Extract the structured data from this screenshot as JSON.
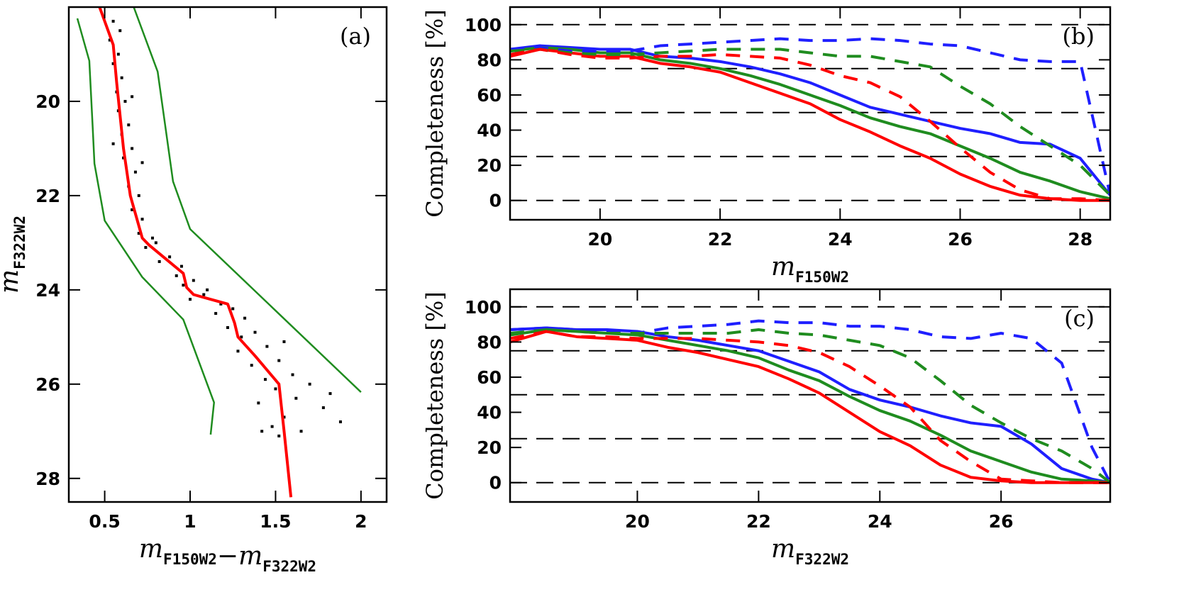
{
  "chart_data": [
    {
      "type": "scatter",
      "annotation": "(a)",
      "xlabel": [
        {
          "text": "m",
          "sub": "F150W2"
        },
        {
          "text": "−m",
          "sub": "F322W2"
        }
      ],
      "ylabel": [
        {
          "text": "m",
          "sub": "F322W2"
        }
      ],
      "xlim": [
        0.29,
        2.15
      ],
      "ylim": [
        28.5,
        18
      ],
      "xticks": [
        {
          "value": 0.5,
          "label": "0.5"
        },
        1,
        {
          "value": 1.5,
          "label": "1.5"
        },
        2
      ],
      "yticks": [
        20,
        22,
        24,
        26,
        28
      ],
      "series": [
        {
          "mode": "markers",
          "color": "#000000",
          "x": [
            0.55,
            0.59,
            0.53,
            0.58,
            0.55,
            0.6,
            0.57,
            0.62,
            0.58,
            0.64,
            0.6,
            0.66,
            0.61,
            0.68,
            0.64,
            0.7,
            0.66,
            0.72,
            0.7,
            0.8,
            0.74,
            0.88,
            0.82,
            0.95,
            0.92,
            1.02,
            0.96,
            1.08,
            1.0,
            1.18,
            1.25,
            1.15,
            1.32,
            1.22,
            1.38,
            1.3,
            1.45,
            1.28,
            1.52,
            1.36,
            1.6,
            1.44,
            1.7,
            1.5,
            1.62,
            1.4,
            1.78,
            1.55,
            1.88,
            1.48,
            1.65,
            1.52,
            0.72,
            0.55,
            1.1,
            1.55,
            0.66,
            0.78,
            1.82,
            1.42
          ],
          "y": [
            18.3,
            18.5,
            18.7,
            19.0,
            19.2,
            19.5,
            19.8,
            20.0,
            20.2,
            20.5,
            20.7,
            21.0,
            21.2,
            21.5,
            21.8,
            22.0,
            22.3,
            22.5,
            22.8,
            23.0,
            23.1,
            23.3,
            23.4,
            23.5,
            23.7,
            23.8,
            23.9,
            24.1,
            24.2,
            24.3,
            24.4,
            24.5,
            24.6,
            24.8,
            24.9,
            25.0,
            25.2,
            25.3,
            25.5,
            25.6,
            25.8,
            25.9,
            26.0,
            26.1,
            26.3,
            26.4,
            26.5,
            26.7,
            26.8,
            26.9,
            27.0,
            27.1,
            21.3,
            20.9,
            24.0,
            25.1,
            19.9,
            22.9,
            26.2,
            27.0
          ]
        },
        {
          "mode": "lines",
          "color": "#1f8c1f",
          "x": [
            0.34,
            0.41,
            0.43,
            0.44,
            0.5,
            0.72,
            0.96,
            1.14,
            1.12
          ],
          "y": [
            18.24,
            19.14,
            20.57,
            21.32,
            22.53,
            23.73,
            24.63,
            26.39,
            27.07
          ]
        },
        {
          "mode": "lines",
          "color": "#1f8c1f",
          "x": [
            0.67,
            0.81,
            0.9,
            1.0,
            2.0
          ],
          "y": [
            18.0,
            19.37,
            21.7,
            22.71,
            26.17
          ]
        },
        {
          "mode": "lines",
          "color": "#ff0000",
          "x": [
            0.47,
            0.55,
            0.57,
            0.61,
            0.65,
            0.72,
            0.76,
            0.86,
            0.96,
            0.98,
            1.02,
            1.12,
            1.22,
            1.26,
            1.28,
            1.38,
            1.45,
            1.52,
            1.55,
            1.59
          ],
          "y": [
            18.0,
            18.8,
            19.6,
            21.0,
            22.0,
            22.9,
            23.05,
            23.35,
            23.65,
            23.95,
            24.1,
            24.2,
            24.3,
            24.7,
            25.0,
            25.4,
            25.7,
            26.0,
            27.0,
            28.4
          ]
        }
      ]
    },
    {
      "type": "line",
      "annotation": "(b)",
      "xlabel": [
        {
          "text": "m",
          "sub": "F150W2"
        }
      ],
      "ylabel": "Completeness [%]",
      "xlim": [
        18.5,
        28.5
      ],
      "ylim": [
        -11,
        110
      ],
      "xticks": [
        20,
        22,
        24,
        26,
        28
      ],
      "yticks": [
        0,
        20,
        40,
        60,
        80,
        100
      ],
      "hlines": [
        0,
        25,
        50,
        75,
        100
      ],
      "x": [
        18.5,
        19,
        19.5,
        20,
        20.5,
        21,
        21.5,
        22,
        22.5,
        23,
        23.5,
        24,
        24.5,
        25,
        25.5,
        26,
        26.5,
        27,
        27.5,
        28,
        28.5
      ],
      "series": [
        {
          "color": "#1f1fff",
          "dash": false,
          "values": [
            86,
            88,
            87,
            86,
            86,
            82,
            81,
            79,
            76,
            72,
            67,
            60,
            53,
            49,
            45,
            41,
            38,
            33,
            32,
            24,
            3
          ]
        },
        {
          "color": "#1f8c1f",
          "dash": false,
          "values": [
            85,
            87,
            86,
            84,
            84,
            80,
            78,
            75,
            71,
            66,
            60,
            54,
            47,
            42,
            38,
            31,
            24,
            16,
            11,
            5,
            1
          ]
        },
        {
          "color": "#ff0000",
          "dash": false,
          "values": [
            82,
            86,
            84,
            82,
            82,
            78,
            76,
            73,
            67,
            61,
            55,
            46,
            39,
            31,
            24,
            15,
            8,
            3,
            1,
            0,
            0
          ]
        },
        {
          "color": "#1f1fff",
          "dash": true,
          "values": [
            86,
            87,
            85,
            85,
            85,
            88,
            89,
            90,
            91,
            92,
            91,
            91,
            92,
            91,
            89,
            88,
            84,
            80,
            79,
            79,
            3
          ]
        },
        {
          "color": "#1f8c1f",
          "dash": true,
          "values": [
            85,
            86,
            84,
            83,
            83,
            84,
            85,
            86,
            86,
            86,
            84,
            82,
            82,
            79,
            76,
            65,
            55,
            42,
            31,
            20,
            3
          ]
        },
        {
          "color": "#ff0000",
          "dash": true,
          "values": [
            83,
            86,
            83,
            81,
            81,
            82,
            82,
            83,
            82,
            81,
            77,
            71,
            67,
            59,
            45,
            30,
            16,
            6,
            1,
            1,
            0
          ]
        }
      ]
    },
    {
      "type": "line",
      "annotation": "(c)",
      "xlabel": [
        {
          "text": "m",
          "sub": "F322W2"
        }
      ],
      "ylabel": "Completeness [%]",
      "xlim": [
        17.9,
        27.8
      ],
      "ylim": [
        -11,
        110
      ],
      "xticks": [
        20,
        22,
        24,
        26
      ],
      "yticks": [
        0,
        20,
        40,
        60,
        80,
        100
      ],
      "hlines": [
        0,
        25,
        50,
        75,
        100
      ],
      "x": [
        17.9,
        18.5,
        19,
        19.5,
        20,
        20.5,
        21,
        21.5,
        22,
        22.5,
        23,
        23.5,
        24,
        24.5,
        25,
        25.5,
        26,
        26.5,
        27,
        27.5,
        27.8
      ],
      "series": [
        {
          "color": "#1f1fff",
          "dash": false,
          "values": [
            87,
            88,
            87,
            87,
            86,
            83,
            81,
            78,
            75,
            69,
            63,
            53,
            47,
            43,
            38,
            34,
            32,
            22,
            8,
            2,
            0
          ]
        },
        {
          "color": "#1f8c1f",
          "dash": false,
          "values": [
            84,
            87,
            86,
            85,
            84,
            81,
            78,
            75,
            71,
            64,
            58,
            49,
            41,
            35,
            27,
            18,
            12,
            6,
            2,
            1,
            0
          ]
        },
        {
          "color": "#ff0000",
          "dash": false,
          "values": [
            80,
            86,
            83,
            82,
            81,
            77,
            74,
            70,
            66,
            59,
            51,
            40,
            29,
            21,
            10,
            3,
            1,
            0,
            0,
            0,
            0
          ]
        },
        {
          "color": "#1f1fff",
          "dash": true,
          "values": [
            87,
            88,
            87,
            86,
            85,
            88,
            89,
            90,
            92,
            91,
            91,
            89,
            89,
            87,
            83,
            82,
            85,
            82,
            68,
            20,
            0
          ]
        },
        {
          "color": "#1f8c1f",
          "dash": true,
          "values": [
            85,
            87,
            86,
            85,
            85,
            85,
            85,
            85,
            87,
            85,
            84,
            81,
            78,
            71,
            58,
            44,
            34,
            25,
            18,
            8,
            0
          ]
        },
        {
          "color": "#ff0000",
          "dash": true,
          "values": [
            82,
            86,
            83,
            83,
            82,
            82,
            82,
            81,
            80,
            78,
            74,
            66,
            55,
            43,
            24,
            12,
            2,
            1,
            0,
            0,
            0
          ]
        }
      ]
    }
  ]
}
